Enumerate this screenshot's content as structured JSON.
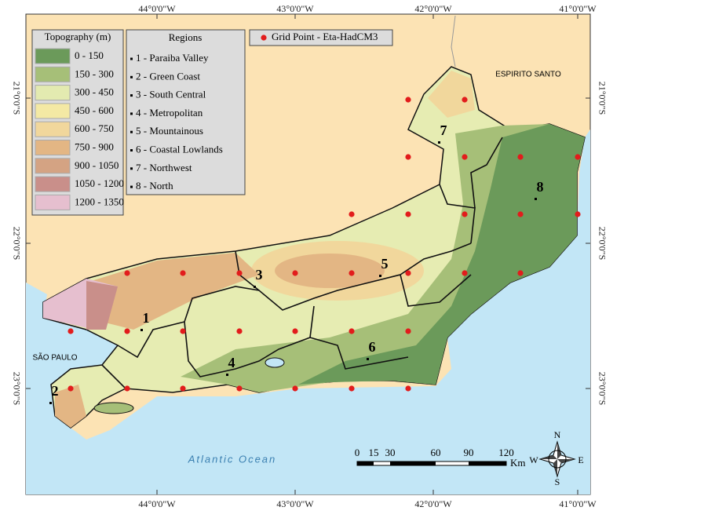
{
  "axes": {
    "top": [
      "44°0'0\"W",
      "43°0'0\"W",
      "42°0'0\"W",
      "41°0'0\"W"
    ],
    "bottom": [
      "44°0'0\"W",
      "43°0'0\"W",
      "42°0'0\"W",
      "41°0'0\"W"
    ],
    "left": [
      "21°0'0\"S",
      "22°0'0\"S",
      "23°0'0\"S"
    ],
    "right": [
      "21°0'0\"S",
      "22°0'0\"S",
      "23°0'0\"S"
    ]
  },
  "topography_legend": {
    "title": "Topography (m)",
    "classes": [
      {
        "label": "0 - 150",
        "color": "#6b9a5a"
      },
      {
        "label": "150 - 300",
        "color": "#a6bf78"
      },
      {
        "label": "300 - 450",
        "color": "#e3eab0"
      },
      {
        "label": "450 - 600",
        "color": "#f4e9a4"
      },
      {
        "label": "600 - 750",
        "color": "#f1d79c"
      },
      {
        "label": "750 - 900",
        "color": "#e3b684"
      },
      {
        "label": "900 - 1050",
        "color": "#d4a383"
      },
      {
        "label": "1050 - 1200",
        "color": "#c98f8a"
      },
      {
        "label": "1200 - 1350",
        "color": "#e6bfcf"
      }
    ]
  },
  "regions_legend": {
    "title": "Regions",
    "items": [
      "1 - Paraiba Valley",
      "2 - Green Coast",
      "3 - South Central",
      "4 - Metropolitan",
      "5 - Mountainous",
      "6 - Coastal Lowlands",
      "7 - Northwest",
      "8 - North"
    ]
  },
  "grid_legend": {
    "label": "Grid Point - Eta-HadCM3"
  },
  "labels": {
    "espirito_santo": "ESPIRITO SANTO",
    "sao_paulo": "SÃO PAULO",
    "ocean": "Atlantic Ocean",
    "region_numbers": [
      "1",
      "2",
      "3",
      "4",
      "5",
      "6",
      "7",
      "8"
    ]
  },
  "scale_bar": {
    "ticks": [
      "0",
      "15",
      "30",
      "60",
      "90",
      "120"
    ],
    "unit": "Km"
  },
  "compass": {
    "n": "N",
    "s": "S",
    "e": "E",
    "w": "W"
  }
}
